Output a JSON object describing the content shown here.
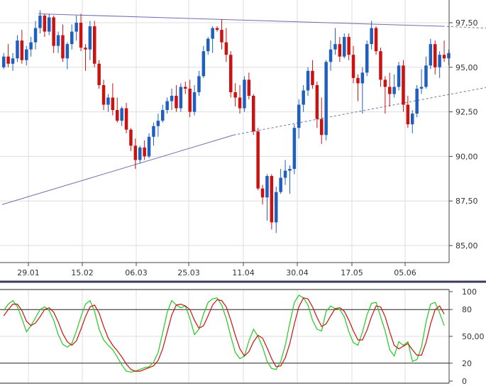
{
  "chart_data": [
    {
      "type": "candlestick",
      "title": "",
      "ylim": [
        84.5,
        98.2
      ],
      "y_ticks": [
        "85,00",
        "87,50",
        "90,00",
        "92,50",
        "95,00",
        "97,50"
      ],
      "y_tick_values": [
        85.0,
        87.5,
        90.0,
        92.5,
        95.0,
        97.5
      ],
      "x_tick_labels": [
        "29.01",
        "15.02",
        "06.03",
        "25.03",
        "11.04",
        "30.04",
        "17.05",
        "05.06"
      ],
      "up_color": "#1f5fbf",
      "down_color": "#cc1111",
      "grid": true,
      "candles": [
        [
          95.0,
          95.8,
          94.9,
          95.6
        ],
        [
          95.6,
          96.3,
          95.0,
          95.2
        ],
        [
          95.2,
          95.8,
          94.8,
          95.5
        ],
        [
          95.5,
          96.8,
          95.3,
          96.5
        ],
        [
          96.5,
          97.1,
          95.2,
          95.4
        ],
        [
          95.4,
          96.2,
          95.1,
          96.0
        ],
        [
          96.0,
          96.7,
          95.6,
          96.4
        ],
        [
          96.4,
          97.6,
          96.0,
          97.2
        ],
        [
          97.2,
          98.2,
          96.9,
          97.9
        ],
        [
          97.9,
          98.0,
          96.7,
          97.0
        ],
        [
          97.0,
          98.0,
          96.8,
          97.8
        ],
        [
          97.8,
          97.9,
          95.8,
          96.2
        ],
        [
          96.2,
          97.0,
          95.8,
          96.8
        ],
        [
          96.8,
          97.4,
          95.3,
          95.5
        ],
        [
          95.5,
          96.4,
          94.9,
          96.3
        ],
        [
          96.3,
          97.4,
          96.0,
          97.0
        ],
        [
          97.0,
          97.9,
          96.5,
          97.5
        ],
        [
          97.5,
          98.0,
          95.9,
          96.1
        ],
        [
          96.1,
          96.3,
          94.8,
          96.0
        ],
        [
          96.0,
          97.6,
          95.4,
          97.3
        ],
        [
          97.3,
          97.6,
          95.0,
          95.2
        ],
        [
          95.2,
          95.4,
          93.8,
          94.0
        ],
        [
          94.0,
          94.3,
          92.6,
          92.9
        ],
        [
          92.9,
          93.5,
          92.5,
          93.3
        ],
        [
          93.3,
          94.1,
          92.3,
          92.6
        ],
        [
          92.6,
          93.3,
          91.9,
          92.0
        ],
        [
          92.0,
          92.8,
          91.7,
          92.7
        ],
        [
          92.7,
          93.0,
          91.3,
          91.5
        ],
        [
          91.5,
          91.6,
          90.3,
          90.6
        ],
        [
          90.6,
          91.0,
          89.3,
          89.8
        ],
        [
          89.8,
          90.6,
          89.6,
          90.5
        ],
        [
          90.5,
          90.9,
          89.8,
          90.0
        ],
        [
          90.0,
          91.3,
          89.9,
          91.1
        ],
        [
          91.1,
          91.9,
          90.6,
          91.7
        ],
        [
          91.7,
          92.4,
          91.1,
          92.0
        ],
        [
          92.0,
          92.9,
          91.9,
          92.6
        ],
        [
          92.6,
          93.3,
          92.4,
          93.1
        ],
        [
          93.1,
          93.8,
          92.6,
          93.4
        ],
        [
          93.4,
          94.0,
          92.5,
          92.7
        ],
        [
          92.7,
          94.1,
          92.5,
          93.9
        ],
        [
          93.9,
          94.2,
          93.5,
          93.8
        ],
        [
          93.8,
          94.3,
          92.2,
          92.5
        ],
        [
          92.5,
          94.0,
          92.3,
          93.6
        ],
        [
          93.6,
          94.8,
          93.4,
          94.5
        ],
        [
          94.5,
          96.2,
          94.4,
          95.9
        ],
        [
          95.9,
          96.7,
          95.7,
          96.6
        ],
        [
          96.6,
          97.3,
          95.8,
          97.2
        ],
        [
          97.2,
          97.3,
          97.0,
          97.1
        ],
        [
          97.1,
          97.7,
          96.0,
          96.4
        ],
        [
          96.4,
          97.2,
          95.3,
          95.7
        ],
        [
          95.7,
          95.9,
          93.3,
          93.6
        ],
        [
          93.6,
          94.1,
          92.8,
          93.3
        ],
        [
          93.3,
          94.0,
          92.4,
          92.7
        ],
        [
          92.7,
          94.5,
          92.5,
          94.3
        ],
        [
          94.3,
          94.7,
          93.2,
          93.4
        ],
        [
          93.4,
          93.5,
          91.2,
          91.4
        ],
        [
          91.4,
          91.6,
          88.1,
          88.2
        ],
        [
          88.2,
          88.4,
          87.3,
          87.7
        ],
        [
          87.7,
          89.0,
          86.4,
          88.9
        ],
        [
          88.9,
          89.0,
          85.9,
          86.3
        ],
        [
          86.3,
          88.3,
          85.7,
          88.0
        ],
        [
          88.0,
          89.3,
          87.9,
          88.8
        ],
        [
          88.8,
          89.8,
          88.4,
          89.2
        ],
        [
          89.2,
          89.5,
          87.9,
          89.3
        ],
        [
          89.3,
          91.8,
          89.0,
          91.6
        ],
        [
          91.6,
          93.2,
          91.0,
          92.9
        ],
        [
          92.9,
          94.0,
          92.5,
          93.7
        ],
        [
          93.7,
          95.0,
          93.4,
          94.8
        ],
        [
          94.8,
          95.4,
          93.8,
          94.0
        ],
        [
          94.0,
          94.2,
          91.6,
          92.1
        ],
        [
          92.1,
          93.3,
          90.7,
          91.2
        ],
        [
          91.2,
          95.4,
          90.9,
          95.3
        ],
        [
          95.3,
          96.5,
          94.8,
          96.0
        ],
        [
          96.0,
          97.2,
          95.7,
          96.3
        ],
        [
          96.3,
          96.7,
          95.3,
          95.6
        ],
        [
          95.6,
          96.9,
          95.5,
          96.7
        ],
        [
          96.7,
          96.9,
          95.4,
          95.7
        ],
        [
          95.7,
          96.2,
          94.1,
          94.4
        ],
        [
          94.4,
          94.6,
          93.1,
          94.1
        ],
        [
          94.1,
          95.0,
          92.4,
          94.7
        ],
        [
          94.7,
          96.5,
          94.5,
          96.3
        ],
        [
          96.3,
          97.6,
          96.0,
          97.2
        ],
        [
          97.2,
          97.3,
          95.7,
          95.9
        ],
        [
          95.9,
          96.1,
          93.9,
          94.3
        ],
        [
          94.3,
          94.5,
          92.4,
          93.9
        ],
        [
          93.9,
          94.7,
          92.8,
          93.5
        ],
        [
          93.5,
          94.6,
          93.3,
          93.9
        ],
        [
          93.9,
          95.3,
          93.7,
          95.1
        ],
        [
          95.1,
          95.4,
          92.5,
          92.9
        ],
        [
          92.9,
          93.4,
          91.6,
          91.8
        ],
        [
          91.8,
          92.6,
          91.3,
          92.4
        ],
        [
          92.4,
          94.0,
          92.2,
          93.8
        ],
        [
          93.8,
          94.9,
          93.5,
          93.9
        ],
        [
          93.9,
          95.6,
          93.8,
          95.1
        ],
        [
          95.1,
          96.6,
          94.9,
          96.3
        ],
        [
          96.3,
          96.5,
          94.6,
          95.0
        ],
        [
          95.0,
          95.9,
          94.4,
          95.7
        ],
        [
          95.7,
          96.5,
          95.3,
          95.5
        ],
        [
          95.5,
          96.0,
          95.1,
          95.8
        ]
      ],
      "trendlines": [
        {
          "name": "resistance",
          "solid": [
            [
              8,
              98.0
            ],
            [
              97,
              97.3
            ]
          ],
          "dashed": [
            [
              97,
              97.3
            ],
            [
              124,
              97.0
            ]
          ],
          "color": "#6f6fb0"
        },
        {
          "name": "support",
          "solid": [
            [
              0,
              87.3
            ],
            [
              51,
              91.2
            ]
          ],
          "dashed": [
            [
              51,
              91.2
            ],
            [
              124,
              94.7
            ]
          ],
          "color": "#6f6fb0"
        }
      ]
    },
    {
      "type": "line",
      "title": "",
      "ylim": [
        0,
        100
      ],
      "y_ticks": [
        "100",
        "80",
        "50,00",
        "20",
        "0"
      ],
      "y_tick_values": [
        100,
        80,
        50,
        20,
        0
      ],
      "reference_lines": [
        80,
        20
      ],
      "series": [
        {
          "color": "#22cc22",
          "values": [
            79,
            86,
            90,
            83,
            70,
            55,
            62,
            71,
            80,
            83,
            79,
            68,
            52,
            41,
            38,
            42,
            56,
            72,
            86,
            90,
            78,
            58,
            46,
            40,
            35,
            27,
            18,
            11,
            10,
            11,
            13,
            15,
            16,
            21,
            32,
            54,
            77,
            90,
            85,
            82,
            84,
            70,
            52,
            58,
            75,
            88,
            92,
            93,
            85,
            70,
            50,
            32,
            25,
            28,
            45,
            58,
            50,
            38,
            22,
            14,
            13,
            22,
            40,
            65,
            88,
            96,
            93,
            85,
            68,
            58,
            56,
            78,
            84,
            81,
            80,
            72,
            55,
            43,
            40,
            55,
            74,
            87,
            88,
            72,
            56,
            35,
            28,
            44,
            40,
            44,
            22,
            24,
            38,
            66,
            86,
            88,
            76,
            62
          ]
        },
        {
          "color": "#cc1111",
          "values": [
            73,
            80,
            86,
            86,
            79,
            67,
            62,
            65,
            72,
            80,
            82,
            77,
            66,
            53,
            44,
            40,
            45,
            58,
            72,
            83,
            85,
            76,
            61,
            48,
            40,
            34,
            27,
            19,
            13,
            11,
            11,
            13,
            15,
            17,
            23,
            36,
            55,
            74,
            85,
            86,
            84,
            80,
            68,
            59,
            62,
            73,
            85,
            91,
            90,
            83,
            68,
            51,
            36,
            28,
            33,
            44,
            51,
            48,
            37,
            25,
            16,
            17,
            26,
            42,
            64,
            83,
            93,
            92,
            83,
            71,
            61,
            64,
            73,
            81,
            82,
            78,
            68,
            56,
            46,
            46,
            57,
            72,
            84,
            83,
            72,
            55,
            40,
            36,
            39,
            42,
            35,
            29,
            29,
            43,
            64,
            80,
            84,
            75
          ]
        }
      ]
    }
  ]
}
